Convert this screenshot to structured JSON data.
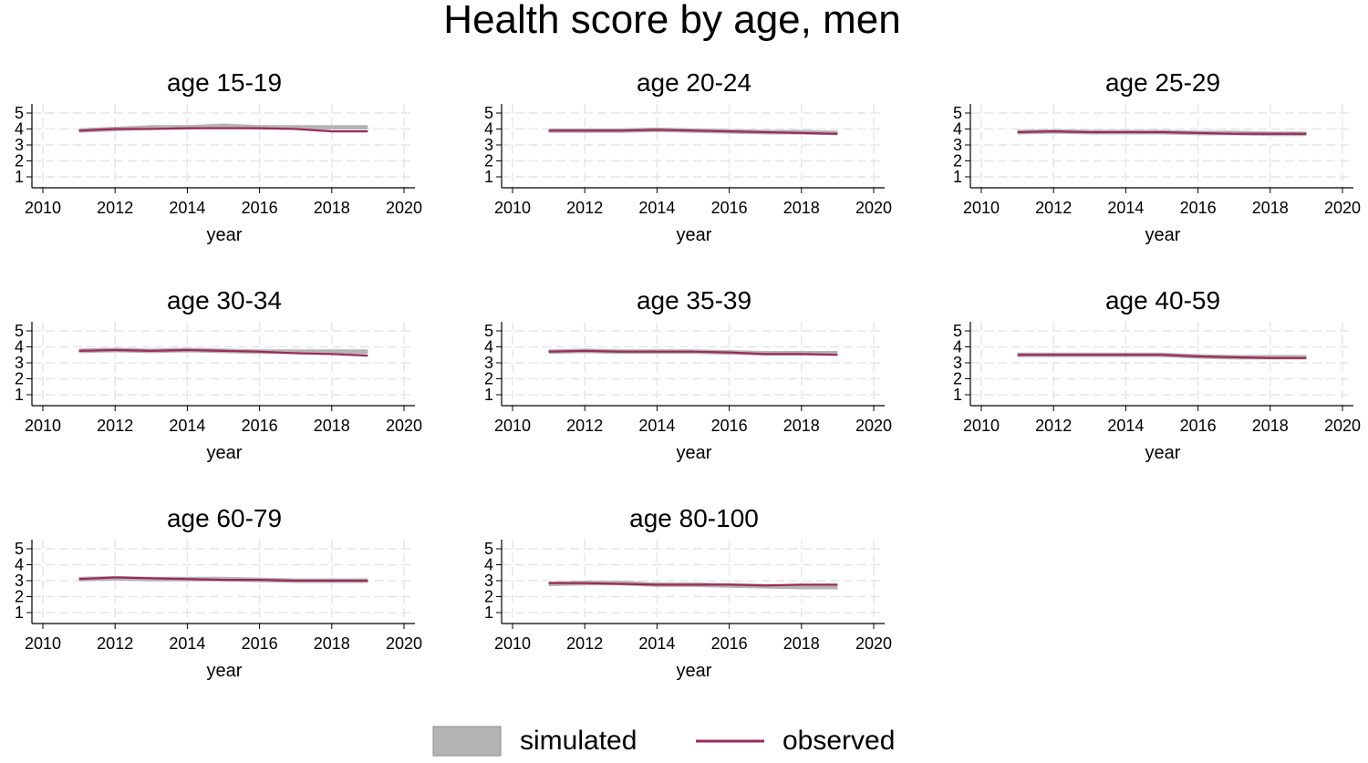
{
  "title": "Health score by age, men",
  "colors": {
    "simulated_fill": "#b4b4b4",
    "simulated_edge": "#8c8c8c",
    "observed": "#9b2a5d",
    "grid": "#e6e6e6",
    "axis": "#000000"
  },
  "legend": {
    "simulated": "simulated",
    "observed": "observed"
  },
  "chart_data": {
    "type": "line",
    "layout": "small-multiples, 3 columns",
    "xlabel": "year",
    "ylabel": "",
    "xlim": [
      2010,
      2020
    ],
    "ylim": [
      1,
      5
    ],
    "x_ticks": [
      2010,
      2012,
      2014,
      2016,
      2018,
      2020
    ],
    "y_ticks": [
      1,
      2,
      3,
      4,
      5
    ],
    "grid": true,
    "legend_position": "bottom",
    "x": [
      2011,
      2012,
      2013,
      2014,
      2015,
      2016,
      2017,
      2018,
      2019
    ],
    "panels": [
      {
        "title": "age 15-19",
        "simulated": [
          3.9,
          4.0,
          4.1,
          4.1,
          4.2,
          4.1,
          4.1,
          4.1,
          4.1
        ],
        "observed": [
          3.9,
          4.0,
          4.0,
          4.05,
          4.05,
          4.05,
          4.0,
          3.85,
          3.85
        ]
      },
      {
        "title": "age 20-24",
        "simulated": [
          3.9,
          3.9,
          3.9,
          3.95,
          3.9,
          3.85,
          3.8,
          3.8,
          3.75
        ],
        "observed": [
          3.9,
          3.9,
          3.9,
          3.95,
          3.9,
          3.85,
          3.8,
          3.75,
          3.7
        ]
      },
      {
        "title": "age 25-29",
        "simulated": [
          3.8,
          3.85,
          3.8,
          3.8,
          3.8,
          3.75,
          3.75,
          3.7,
          3.7
        ],
        "observed": [
          3.8,
          3.85,
          3.8,
          3.8,
          3.8,
          3.75,
          3.7,
          3.7,
          3.7
        ]
      },
      {
        "title": "age 30-34",
        "simulated": [
          3.75,
          3.8,
          3.75,
          3.8,
          3.75,
          3.7,
          3.7,
          3.7,
          3.7
        ],
        "observed": [
          3.75,
          3.8,
          3.75,
          3.8,
          3.75,
          3.7,
          3.6,
          3.55,
          3.45
        ]
      },
      {
        "title": "age 35-39",
        "simulated": [
          3.7,
          3.75,
          3.7,
          3.7,
          3.7,
          3.65,
          3.6,
          3.6,
          3.6
        ],
        "observed": [
          3.7,
          3.75,
          3.7,
          3.7,
          3.7,
          3.65,
          3.55,
          3.55,
          3.5
        ]
      },
      {
        "title": "age 40-59",
        "simulated": [
          3.5,
          3.5,
          3.5,
          3.5,
          3.5,
          3.4,
          3.35,
          3.35,
          3.35
        ],
        "observed": [
          3.5,
          3.5,
          3.5,
          3.5,
          3.5,
          3.4,
          3.35,
          3.3,
          3.3
        ]
      },
      {
        "title": "age 60-79",
        "simulated": [
          3.1,
          3.15,
          3.1,
          3.1,
          3.1,
          3.05,
          3.0,
          3.0,
          3.0
        ],
        "observed": [
          3.1,
          3.2,
          3.15,
          3.1,
          3.05,
          3.05,
          3.0,
          3.0,
          3.0
        ]
      },
      {
        "title": "age 80-100",
        "simulated": [
          2.8,
          2.85,
          2.85,
          2.75,
          2.75,
          2.7,
          2.65,
          2.6,
          2.6
        ],
        "observed": [
          2.85,
          2.85,
          2.8,
          2.75,
          2.75,
          2.75,
          2.7,
          2.75,
          2.75
        ]
      }
    ]
  }
}
